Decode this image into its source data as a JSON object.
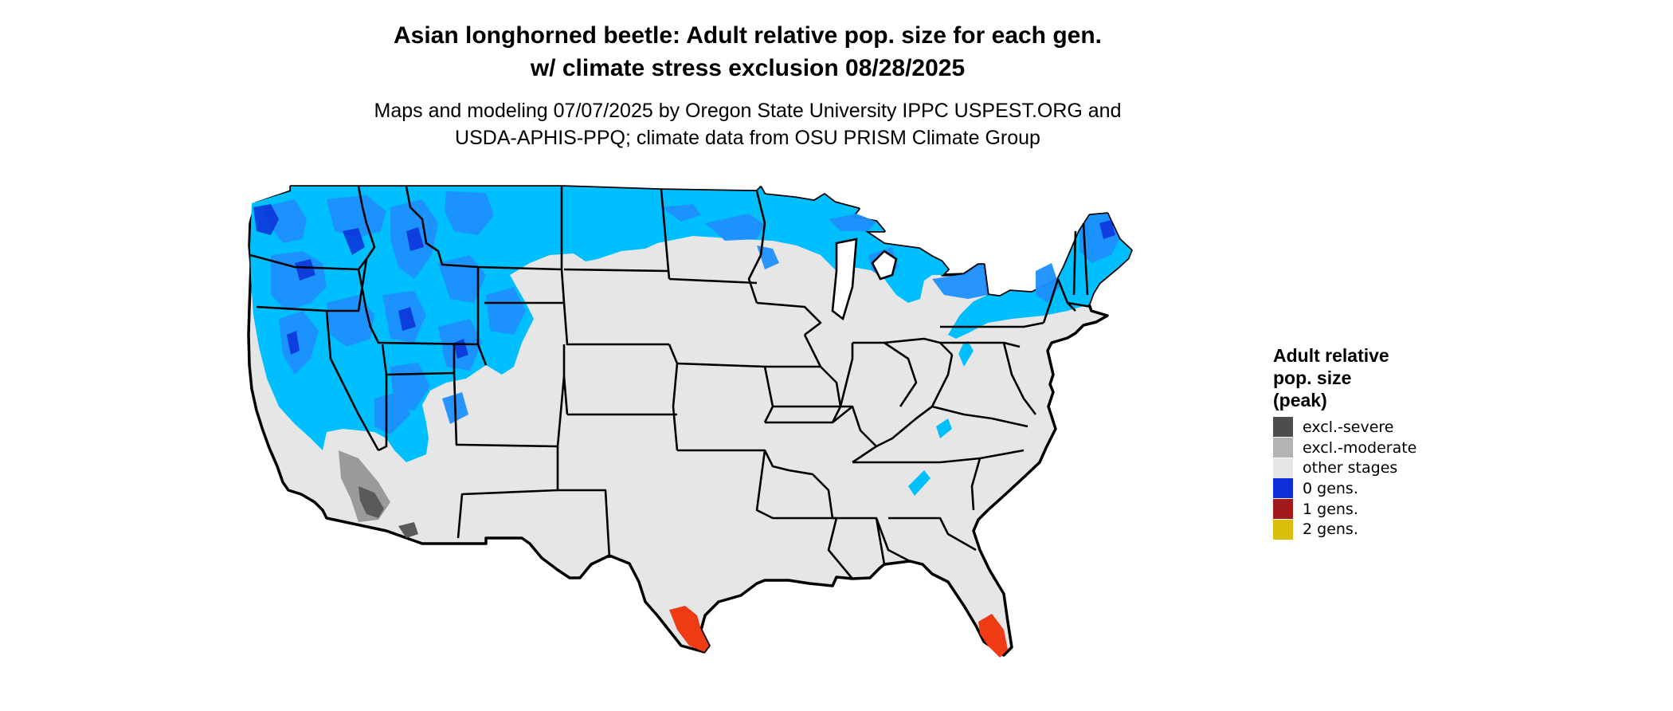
{
  "title_line1": "Asian longhorned beetle: Adult relative pop. size for each gen.",
  "title_line2": "w/ climate stress exclusion 08/28/2025",
  "subtitle_line1": "Maps and modeling 07/07/2025 by Oregon State University IPPC USPEST.ORG and",
  "subtitle_line2": "USDA-APHIS-PPQ; climate data from OSU PRISM Climate Group",
  "legend": {
    "title_lines": [
      "Adult relative",
      "pop. size",
      "(peak)"
    ],
    "items": [
      {
        "label": "excl.-severe",
        "color": "#4d4d4d"
      },
      {
        "label": "excl.-moderate",
        "color": "#b3b3b3"
      },
      {
        "label": "other stages",
        "color": "#e6e6e6"
      },
      {
        "label": "0 gens.",
        "color": "#0c2fd9"
      },
      {
        "label": "1 gens.",
        "color": "#a31a1a"
      },
      {
        "label": "2 gens.",
        "color": "#d9bf0c"
      }
    ]
  },
  "map_colors": {
    "background_land": "#e6e6e6",
    "zero_gens_light": "#00bfff",
    "zero_gens_mid": "#1e90ff",
    "zero_gens_dark": "#0c2fd9",
    "one_gen": "#ee3b14",
    "excl_moderate": "#9a9a9a",
    "excl_severe": "#5a5a5a",
    "border": "#000000"
  }
}
